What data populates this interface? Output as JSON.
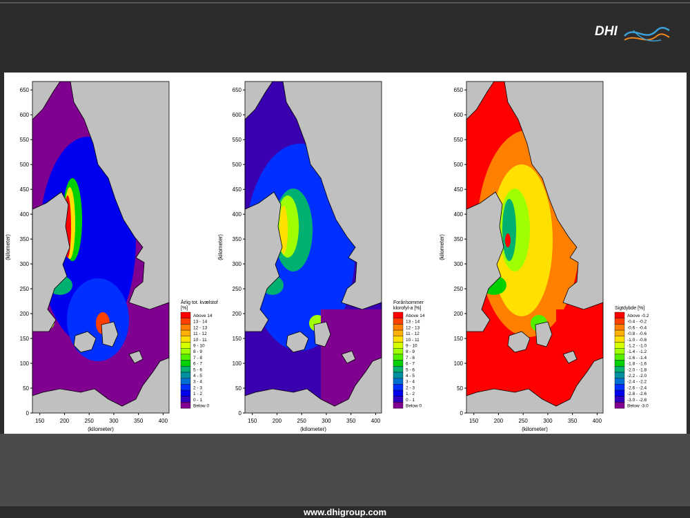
{
  "header": {
    "logo": "DHI"
  },
  "footer": {
    "url": "www.dhigroup.com"
  },
  "panels": [
    {
      "x_label": "(kilometer)",
      "y_label": "(kilometer)",
      "xlim": [
        135,
        412
      ],
      "ylim": [
        0,
        667
      ],
      "xticks": [
        150,
        200,
        250,
        300,
        350,
        400
      ],
      "yticks": [
        0,
        50,
        100,
        150,
        200,
        250,
        300,
        350,
        400,
        450,
        500,
        550,
        600,
        650
      ],
      "legend": {
        "title": [
          "Årlig tot. kvælstof",
          "[%]"
        ],
        "entries": [
          {
            "label": "Above 14",
            "color": "#ff0000"
          },
          {
            "label": "13 - 14",
            "color": "#ff4000"
          },
          {
            "label": "12 - 13",
            "color": "#ff8000"
          },
          {
            "label": "11 - 12",
            "color": "#ffb000"
          },
          {
            "label": "10 - 11",
            "color": "#ffe000"
          },
          {
            "label": "9 - 10",
            "color": "#d8ff00"
          },
          {
            "label": "8 - 9",
            "color": "#a0ff00"
          },
          {
            "label": "7 - 8",
            "color": "#50f000"
          },
          {
            "label": "6 - 7",
            "color": "#00d000"
          },
          {
            "label": "5 - 6",
            "color": "#00b070"
          },
          {
            "label": "4 - 5",
            "color": "#0090a0"
          },
          {
            "label": "3 - 4",
            "color": "#0070d0"
          },
          {
            "label": "2 - 3",
            "color": "#0030ff"
          },
          {
            "label": "1 - 2",
            "color": "#0000f0"
          },
          {
            "label": "0 - 1",
            "color": "#3000c0"
          },
          {
            "label": "Below 0",
            "color": "#800090"
          }
        ]
      }
    },
    {
      "x_label": "(kilometer)",
      "y_label": "(kilometer)",
      "xlim": [
        135,
        412
      ],
      "ylim": [
        0,
        667
      ],
      "xticks": [
        150,
        200,
        250,
        300,
        350,
        400
      ],
      "yticks": [
        0,
        50,
        100,
        150,
        200,
        250,
        300,
        350,
        400,
        450,
        500,
        550,
        600,
        650
      ],
      "legend": {
        "title": [
          "Forår/sommer",
          "klorofyl-a [%]"
        ],
        "entries": [
          {
            "label": "Above 14",
            "color": "#ff0000"
          },
          {
            "label": "13 - 14",
            "color": "#ff4000"
          },
          {
            "label": "12 - 13",
            "color": "#ff8000"
          },
          {
            "label": "11 - 12",
            "color": "#ffb000"
          },
          {
            "label": "10 - 11",
            "color": "#ffe000"
          },
          {
            "label": "9 - 10",
            "color": "#d8ff00"
          },
          {
            "label": "8 - 9",
            "color": "#a0ff00"
          },
          {
            "label": "7 - 8",
            "color": "#50f000"
          },
          {
            "label": "6 - 7",
            "color": "#00d000"
          },
          {
            "label": "5 - 6",
            "color": "#00b070"
          },
          {
            "label": "4 - 5",
            "color": "#0090a0"
          },
          {
            "label": "3 - 4",
            "color": "#0070d0"
          },
          {
            "label": "2 - 3",
            "color": "#0030ff"
          },
          {
            "label": "1 - 2",
            "color": "#0000f0"
          },
          {
            "label": "0 - 1",
            "color": "#3000c0"
          },
          {
            "label": "Below 0",
            "color": "#800090"
          }
        ]
      }
    },
    {
      "x_label": "(kilometer)",
      "y_label": "(kilometer)",
      "xlim": [
        135,
        412
      ],
      "ylim": [
        0,
        667
      ],
      "xticks": [
        150,
        200,
        250,
        300,
        350,
        400
      ],
      "yticks": [
        0,
        50,
        100,
        150,
        200,
        250,
        300,
        350,
        400,
        450,
        500,
        550,
        600,
        650
      ],
      "legend": {
        "title": [
          "Sigtdybde [%]"
        ],
        "entries": [
          {
            "label": "Above -0.2",
            "color": "#ff0000"
          },
          {
            "label": "-0.4 - -0.2",
            "color": "#ff4000"
          },
          {
            "label": "-0.6 - -0.4",
            "color": "#ff8000"
          },
          {
            "label": "-0.8 - -0.6",
            "color": "#ffb000"
          },
          {
            "label": "-1.0 - -0.8",
            "color": "#ffe000"
          },
          {
            "label": "-1.2 - -1.0",
            "color": "#d8ff00"
          },
          {
            "label": "-1.4 - -1.2",
            "color": "#a0ff00"
          },
          {
            "label": "-1.6 - -1.4",
            "color": "#50f000"
          },
          {
            "label": "-1.8 - -1.6",
            "color": "#00d000"
          },
          {
            "label": "-2.0 - -1.8",
            "color": "#00b070"
          },
          {
            "label": "-2.2 - -2.0",
            "color": "#0090a0"
          },
          {
            "label": "-2.4 - -2.2",
            "color": "#0070d0"
          },
          {
            "label": "-2.6 - -2.4",
            "color": "#0030ff"
          },
          {
            "label": "-2.8 - -2.6",
            "color": "#0000f0"
          },
          {
            "label": "-3.0 - -2.8",
            "color": "#3000c0"
          },
          {
            "label": "Below -3.0",
            "color": "#800090"
          }
        ]
      }
    }
  ]
}
